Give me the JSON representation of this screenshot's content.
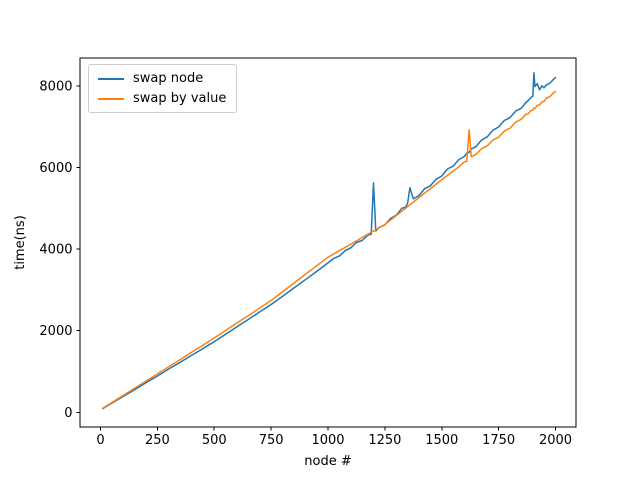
{
  "figure": {
    "background": "#ffffff",
    "text_color": "#000000",
    "spine_color": "#000000"
  },
  "chart_data": {
    "type": "line",
    "title": "",
    "xlabel": "node #",
    "ylabel": "time(ns)",
    "xlim": [
      -90,
      2090
    ],
    "ylim": [
      -360,
      8680
    ],
    "xticks": [
      0,
      250,
      500,
      750,
      1000,
      1250,
      1500,
      1750,
      2000
    ],
    "yticks": [
      0,
      2000,
      4000,
      6000,
      8000
    ],
    "grid": false,
    "legend_position": "upper left",
    "x": [
      10,
      50,
      100,
      150,
      200,
      250,
      300,
      350,
      400,
      450,
      500,
      550,
      600,
      650,
      700,
      750,
      800,
      850,
      900,
      950,
      1000,
      1025,
      1050,
      1075,
      1100,
      1125,
      1150,
      1175,
      1190,
      1200,
      1210,
      1225,
      1250,
      1275,
      1300,
      1325,
      1340,
      1350,
      1360,
      1375,
      1400,
      1425,
      1450,
      1475,
      1500,
      1525,
      1550,
      1575,
      1600,
      1610,
      1620,
      1630,
      1650,
      1675,
      1700,
      1725,
      1750,
      1775,
      1800,
      1825,
      1850,
      1870,
      1880,
      1890,
      1900,
      1905,
      1910,
      1920,
      1930,
      1940,
      1950,
      1960,
      1975,
      1990,
      2000
    ],
    "series": [
      {
        "name": "swap node",
        "color": "#1f77b4",
        "values": [
          90,
          225,
          390,
          555,
          725,
          890,
          1060,
          1225,
          1395,
          1560,
          1730,
          1910,
          2095,
          2275,
          2460,
          2640,
          2840,
          3045,
          3245,
          3450,
          3660,
          3770,
          3830,
          3960,
          4030,
          4160,
          4210,
          4340,
          4360,
          5620,
          4440,
          4530,
          4590,
          4750,
          4830,
          5000,
          5020,
          5120,
          5500,
          5230,
          5310,
          5480,
          5550,
          5710,
          5790,
          5960,
          6030,
          6190,
          6270,
          6350,
          6370,
          6450,
          6510,
          6670,
          6750,
          6910,
          6990,
          7150,
          7220,
          7380,
          7450,
          7590,
          7640,
          7700,
          7750,
          8320,
          7980,
          8050,
          7900,
          8000,
          7950,
          8020,
          8060,
          8150,
          8200
        ]
      },
      {
        "name": "swap by value",
        "color": "#ff7f0e",
        "values": [
          100,
          240,
          415,
          590,
          765,
          940,
          1115,
          1290,
          1470,
          1645,
          1820,
          2005,
          2190,
          2370,
          2555,
          2740,
          2950,
          3165,
          3375,
          3590,
          3800,
          3880,
          3960,
          4040,
          4120,
          4200,
          4280,
          4360,
          4410,
          4440,
          4470,
          4520,
          4600,
          4710,
          4820,
          4930,
          4995,
          5040,
          5085,
          5150,
          5260,
          5370,
          5480,
          5590,
          5700,
          5805,
          5910,
          6015,
          6140,
          6150,
          6920,
          6260,
          6320,
          6460,
          6530,
          6670,
          6740,
          6890,
          6960,
          7110,
          7180,
          7300,
          7310,
          7390,
          7400,
          7450,
          7440,
          7520,
          7530,
          7610,
          7620,
          7700,
          7730,
          7820,
          7860
        ]
      }
    ],
    "annotations": {
      "blue_spike_1": {
        "x": 1200,
        "y": 5620
      },
      "blue_spike_2": {
        "x": 1905,
        "y": 8320
      },
      "orange_spike": {
        "x": 1620,
        "y": 6920
      },
      "crossover_x": 1250
    }
  }
}
